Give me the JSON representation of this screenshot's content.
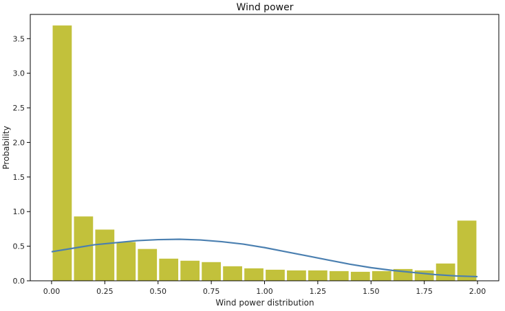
{
  "chart_data": {
    "type": "bar",
    "title": "Wind power",
    "xlabel": "Wind power distribution",
    "ylabel": "Probability",
    "xlim": [
      -0.1,
      2.1
    ],
    "ylim": [
      0,
      3.85
    ],
    "x_ticks": [
      "0.00",
      "0.25",
      "0.50",
      "0.75",
      "1.00",
      "1.25",
      "1.50",
      "1.75",
      "2.00"
    ],
    "y_ticks": [
      "0.0",
      "0.5",
      "1.0",
      "1.5",
      "2.0",
      "2.5",
      "3.0",
      "3.5"
    ],
    "bar_color": "#c2c13b",
    "line_color": "#4a7fb0",
    "grid": false,
    "bins": [
      {
        "x0": 0.0,
        "x1": 0.1,
        "value": 3.69
      },
      {
        "x0": 0.1,
        "x1": 0.2,
        "value": 0.93
      },
      {
        "x0": 0.2,
        "x1": 0.3,
        "value": 0.74
      },
      {
        "x0": 0.3,
        "x1": 0.4,
        "value": 0.56
      },
      {
        "x0": 0.4,
        "x1": 0.5,
        "value": 0.46
      },
      {
        "x0": 0.5,
        "x1": 0.6,
        "value": 0.32
      },
      {
        "x0": 0.6,
        "x1": 0.7,
        "value": 0.29
      },
      {
        "x0": 0.7,
        "x1": 0.8,
        "value": 0.27
      },
      {
        "x0": 0.8,
        "x1": 0.9,
        "value": 0.21
      },
      {
        "x0": 0.9,
        "x1": 1.0,
        "value": 0.18
      },
      {
        "x0": 1.0,
        "x1": 1.1,
        "value": 0.16
      },
      {
        "x0": 1.1,
        "x1": 1.2,
        "value": 0.15
      },
      {
        "x0": 1.2,
        "x1": 1.3,
        "value": 0.15
      },
      {
        "x0": 1.3,
        "x1": 1.4,
        "value": 0.14
      },
      {
        "x0": 1.4,
        "x1": 1.5,
        "value": 0.13
      },
      {
        "x0": 1.5,
        "x1": 1.6,
        "value": 0.14
      },
      {
        "x0": 1.6,
        "x1": 1.7,
        "value": 0.17
      },
      {
        "x0": 1.7,
        "x1": 1.8,
        "value": 0.15
      },
      {
        "x0": 1.8,
        "x1": 1.9,
        "value": 0.25
      },
      {
        "x0": 1.9,
        "x1": 2.0,
        "value": 0.87
      }
    ],
    "curve": {
      "x": [
        0.0,
        0.1,
        0.2,
        0.3,
        0.4,
        0.5,
        0.6,
        0.7,
        0.8,
        0.9,
        1.0,
        1.1,
        1.2,
        1.3,
        1.4,
        1.5,
        1.6,
        1.7,
        1.8,
        1.9,
        2.0
      ],
      "y": [
        0.42,
        0.47,
        0.52,
        0.55,
        0.58,
        0.595,
        0.6,
        0.59,
        0.565,
        0.53,
        0.48,
        0.42,
        0.36,
        0.3,
        0.24,
        0.19,
        0.15,
        0.12,
        0.09,
        0.07,
        0.06
      ]
    }
  }
}
